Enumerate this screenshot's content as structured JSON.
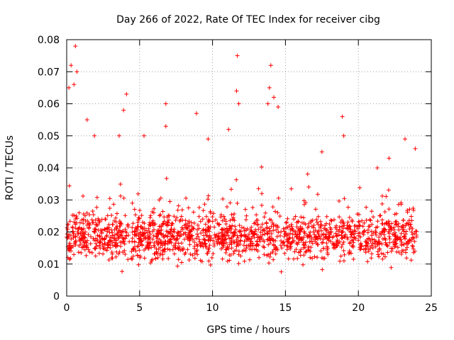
{
  "chart_data": {
    "type": "scatter",
    "title": "Day 266 of 2022, Rate Of TEC Index for receiver cibg",
    "xlabel": "GPS time / hours",
    "ylabel": "ROTI / TECUs",
    "xlim": [
      0,
      25
    ],
    "ylim": [
      0,
      0.08
    ],
    "x_ticks": [
      0,
      5,
      10,
      15,
      20,
      25
    ],
    "x_tick_labels": [
      "0",
      "5",
      "10",
      "15",
      "20",
      "25"
    ],
    "y_ticks": [
      0,
      0.01,
      0.02,
      0.03,
      0.04,
      0.05,
      0.06,
      0.07,
      0.08
    ],
    "y_tick_labels": [
      "0",
      "0.01",
      "0.02",
      "0.03",
      "0.04",
      "0.05",
      "0.06",
      "0.07",
      "0.08"
    ],
    "grid": true,
    "marker": "+",
    "color": "#ff0000",
    "x_data_range_hours": [
      0,
      24
    ],
    "typical_band": [
      0.01,
      0.03
    ],
    "peaks": [
      {
        "x": 0.6,
        "y": 0.078
      },
      {
        "x": 0.3,
        "y": 0.072
      },
      {
        "x": 0.15,
        "y": 0.065
      },
      {
        "x": 0.7,
        "y": 0.07
      },
      {
        "x": 0.5,
        "y": 0.066
      },
      {
        "x": 1.4,
        "y": 0.055
      },
      {
        "x": 1.9,
        "y": 0.05
      },
      {
        "x": 3.6,
        "y": 0.05
      },
      {
        "x": 4.1,
        "y": 0.063
      },
      {
        "x": 3.9,
        "y": 0.058
      },
      {
        "x": 5.3,
        "y": 0.05
      },
      {
        "x": 6.8,
        "y": 0.06
      },
      {
        "x": 6.8,
        "y": 0.053
      },
      {
        "x": 8.9,
        "y": 0.057
      },
      {
        "x": 9.7,
        "y": 0.049
      },
      {
        "x": 11.1,
        "y": 0.052
      },
      {
        "x": 11.7,
        "y": 0.075
      },
      {
        "x": 11.65,
        "y": 0.064
      },
      {
        "x": 11.8,
        "y": 0.06
      },
      {
        "x": 14.0,
        "y": 0.072
      },
      {
        "x": 13.9,
        "y": 0.065
      },
      {
        "x": 14.2,
        "y": 0.062
      },
      {
        "x": 13.8,
        "y": 0.06
      },
      {
        "x": 14.5,
        "y": 0.059
      },
      {
        "x": 17.5,
        "y": 0.045
      },
      {
        "x": 18.9,
        "y": 0.056
      },
      {
        "x": 19.0,
        "y": 0.05
      },
      {
        "x": 21.3,
        "y": 0.04
      },
      {
        "x": 22.1,
        "y": 0.043
      },
      {
        "x": 23.2,
        "y": 0.049
      },
      {
        "x": 23.9,
        "y": 0.046
      }
    ]
  }
}
